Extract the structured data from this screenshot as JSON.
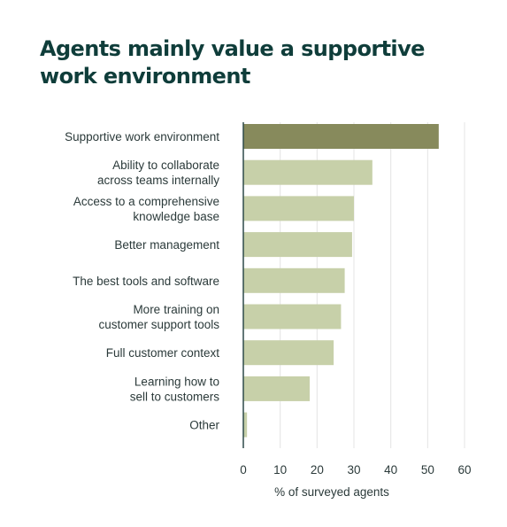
{
  "title_lines": [
    "Agents mainly value a supportive",
    "work environment"
  ],
  "colors": {
    "highlight": "#878a5c",
    "bar": "#c7d0a9",
    "grid": "#e4e4e4",
    "axis": "#2e4a4a",
    "title": "#0f3d3a"
  },
  "chart_data": {
    "type": "bar",
    "orientation": "horizontal",
    "title": "Agents mainly value a supportive work environment",
    "categories": [
      [
        "Supportive work environment"
      ],
      [
        "Ability to collaborate",
        "across teams internally"
      ],
      [
        "Access to a comprehensive",
        "knowledge base"
      ],
      [
        "Better management"
      ],
      [
        "The best tools and software"
      ],
      [
        "More training on",
        "customer support tools"
      ],
      [
        "Full customer context"
      ],
      [
        "Learning how to",
        "sell to customers"
      ],
      [
        "Other"
      ]
    ],
    "values": [
      53,
      35,
      30,
      29.5,
      27.5,
      26.5,
      24.5,
      18,
      1
    ],
    "highlight_index": 0,
    "xlabel": "% of surveyed agents",
    "xlim": [
      0,
      60
    ],
    "xticks": [
      0,
      10,
      20,
      30,
      40,
      50,
      60
    ],
    "grid": "vertical"
  }
}
